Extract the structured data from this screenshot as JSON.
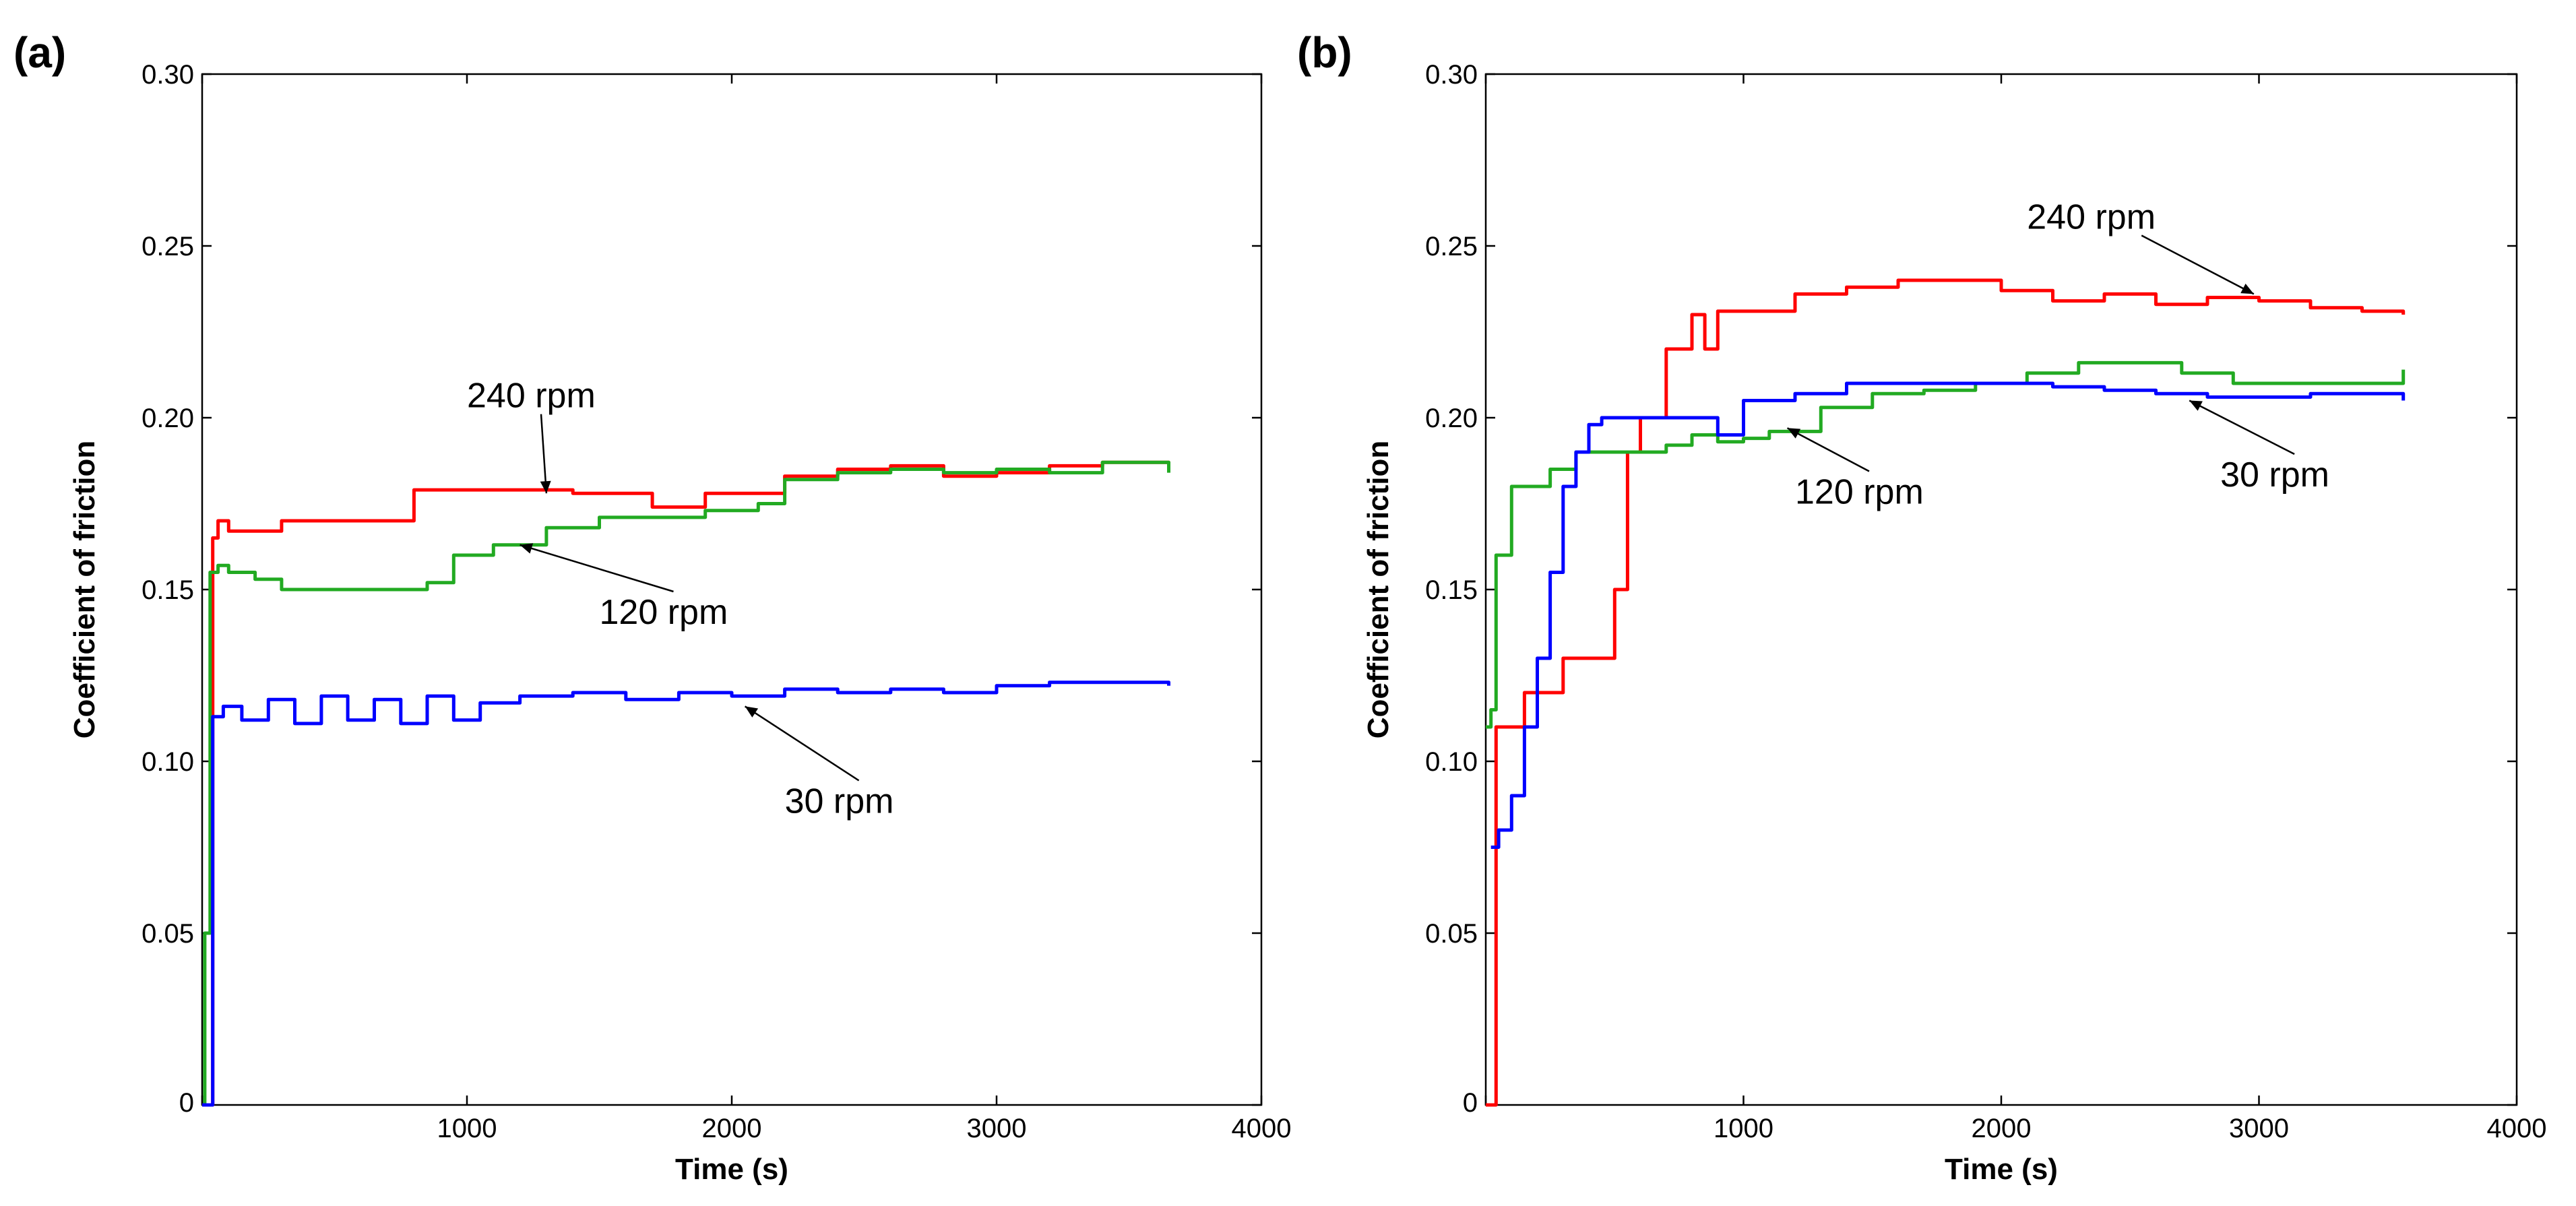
{
  "figure": {
    "background": "#ffffff"
  },
  "chart_data": [
    {
      "panel": "(a)",
      "type": "line",
      "xlabel": "Time (s)",
      "ylabel": "Coefficient of friction",
      "xlim": [
        0,
        4000
      ],
      "ylim": [
        0,
        0.3
      ],
      "xticks": [
        0,
        1000,
        2000,
        3000,
        4000
      ],
      "xtick_labels": [
        "0",
        "1000",
        "2000",
        "3000",
        "4000"
      ],
      "yticks": [
        0,
        0.05,
        0.1,
        0.15,
        0.2,
        0.25,
        0.3
      ],
      "ytick_labels": [
        "0",
        "0.05",
        "0.10",
        "0.15",
        "0.20",
        "0.25",
        "0.30"
      ],
      "series": [
        {
          "name": "240 rpm",
          "color": "#ff0000",
          "x": [
            0,
            20,
            40,
            60,
            100,
            250,
            300,
            500,
            750,
            800,
            1000,
            1200,
            1400,
            1600,
            1700,
            1900,
            2100,
            2200,
            2400,
            2600,
            2800,
            3000,
            3200,
            3400,
            3650
          ],
          "y": [
            0,
            0.0,
            0.165,
            0.17,
            0.167,
            0.167,
            0.17,
            0.17,
            0.17,
            0.179,
            0.179,
            0.179,
            0.178,
            0.178,
            0.174,
            0.178,
            0.178,
            0.183,
            0.185,
            0.186,
            0.183,
            0.184,
            0.186,
            0.187,
            0.186
          ]
        },
        {
          "name": "120 rpm",
          "color": "#22aa22",
          "x": [
            0,
            10,
            30,
            60,
            100,
            200,
            300,
            500,
            700,
            850,
            950,
            1100,
            1300,
            1500,
            1700,
            1900,
            2100,
            2200,
            2400,
            2600,
            2800,
            3000,
            3200,
            3400,
            3650
          ],
          "y": [
            0,
            0.05,
            0.155,
            0.157,
            0.155,
            0.153,
            0.15,
            0.15,
            0.15,
            0.152,
            0.16,
            0.163,
            0.168,
            0.171,
            0.171,
            0.173,
            0.175,
            0.182,
            0.184,
            0.185,
            0.184,
            0.185,
            0.184,
            0.187,
            0.184
          ]
        },
        {
          "name": "30 rpm",
          "color": "#0000ff",
          "x": [
            0,
            20,
            40,
            80,
            150,
            250,
            350,
            450,
            550,
            650,
            750,
            850,
            950,
            1050,
            1200,
            1400,
            1600,
            1800,
            2000,
            2200,
            2400,
            2600,
            2800,
            3000,
            3200,
            3400,
            3650
          ],
          "y": [
            0,
            0.0,
            0.113,
            0.116,
            0.112,
            0.118,
            0.111,
            0.119,
            0.112,
            0.118,
            0.111,
            0.119,
            0.112,
            0.117,
            0.119,
            0.12,
            0.118,
            0.12,
            0.119,
            0.121,
            0.12,
            0.121,
            0.12,
            0.122,
            0.123,
            0.123,
            0.122
          ]
        }
      ],
      "annotations": [
        {
          "text": "240 rpm",
          "text_at": [
            1000,
            0.203
          ],
          "arrow_to": [
            1300,
            0.178
          ]
        },
        {
          "text": "120 rpm",
          "text_at": [
            1500,
            0.14
          ],
          "arrow_to": [
            1200,
            0.163
          ]
        },
        {
          "text": "30 rpm",
          "text_at": [
            2200,
            0.085
          ],
          "arrow_to": [
            2050,
            0.116
          ]
        }
      ]
    },
    {
      "panel": "(b)",
      "type": "line",
      "xlabel": "Time (s)",
      "ylabel": "Coefficient of friction",
      "xlim": [
        0,
        4000
      ],
      "ylim": [
        0,
        0.3
      ],
      "xticks": [
        0,
        1000,
        2000,
        3000,
        4000
      ],
      "xtick_labels": [
        "0",
        "1000",
        "2000",
        "3000",
        "4000"
      ],
      "yticks": [
        0,
        0.05,
        0.1,
        0.15,
        0.2,
        0.25,
        0.3
      ],
      "ytick_labels": [
        "0",
        "0.05",
        "0.10",
        "0.15",
        "0.20",
        "0.25",
        "0.30"
      ],
      "series": [
        {
          "name": "240 rpm",
          "color": "#ff0000",
          "x": [
            0,
            20,
            40,
            100,
            150,
            250,
            300,
            450,
            500,
            550,
            600,
            700,
            800,
            850,
            900,
            1000,
            1200,
            1400,
            1600,
            1800,
            2000,
            2200,
            2400,
            2600,
            2800,
            3000,
            3200,
            3400,
            3560
          ],
          "y": [
            0,
            0.0,
            0.11,
            0.11,
            0.12,
            0.12,
            0.13,
            0.13,
            0.15,
            0.19,
            0.2,
            0.22,
            0.23,
            0.22,
            0.231,
            0.231,
            0.236,
            0.238,
            0.24,
            0.24,
            0.237,
            0.234,
            0.236,
            0.233,
            0.235,
            0.234,
            0.232,
            0.231,
            0.23
          ]
        },
        {
          "name": "120 rpm",
          "color": "#22aa22",
          "x": [
            0,
            20,
            40,
            100,
            150,
            250,
            350,
            500,
            600,
            700,
            800,
            900,
            1000,
            1100,
            1300,
            1500,
            1700,
            1900,
            2100,
            2300,
            2500,
            2700,
            2900,
            3100,
            3300,
            3560
          ],
          "y": [
            0.11,
            0.115,
            0.16,
            0.18,
            0.18,
            0.185,
            0.19,
            0.19,
            0.19,
            0.192,
            0.195,
            0.193,
            0.194,
            0.196,
            0.203,
            0.207,
            0.208,
            0.21,
            0.213,
            0.216,
            0.216,
            0.213,
            0.21,
            0.21,
            0.21,
            0.214
          ]
        },
        {
          "name": "30 rpm",
          "color": "#0000ff",
          "x": [
            20,
            50,
            100,
            150,
            200,
            250,
            300,
            350,
            400,
            450,
            500,
            600,
            800,
            900,
            1000,
            1200,
            1400,
            1600,
            1800,
            2000,
            2200,
            2400,
            2600,
            2800,
            3000,
            3200,
            3400,
            3560
          ],
          "y": [
            0.075,
            0.08,
            0.09,
            0.11,
            0.13,
            0.155,
            0.18,
            0.19,
            0.198,
            0.2,
            0.2,
            0.2,
            0.2,
            0.195,
            0.205,
            0.207,
            0.21,
            0.21,
            0.21,
            0.21,
            0.209,
            0.208,
            0.207,
            0.206,
            0.206,
            0.207,
            0.207,
            0.205
          ]
        }
      ],
      "annotations": [
        {
          "text": "240 rpm",
          "text_at": [
            2100,
            0.255
          ],
          "arrow_to": [
            2980,
            0.236
          ]
        },
        {
          "text": "120 rpm",
          "text_at": [
            1200,
            0.175
          ],
          "arrow_to": [
            1170,
            0.197
          ]
        },
        {
          "text": "30 rpm",
          "text_at": [
            2850,
            0.18
          ],
          "arrow_to": [
            2730,
            0.205
          ]
        }
      ]
    }
  ]
}
